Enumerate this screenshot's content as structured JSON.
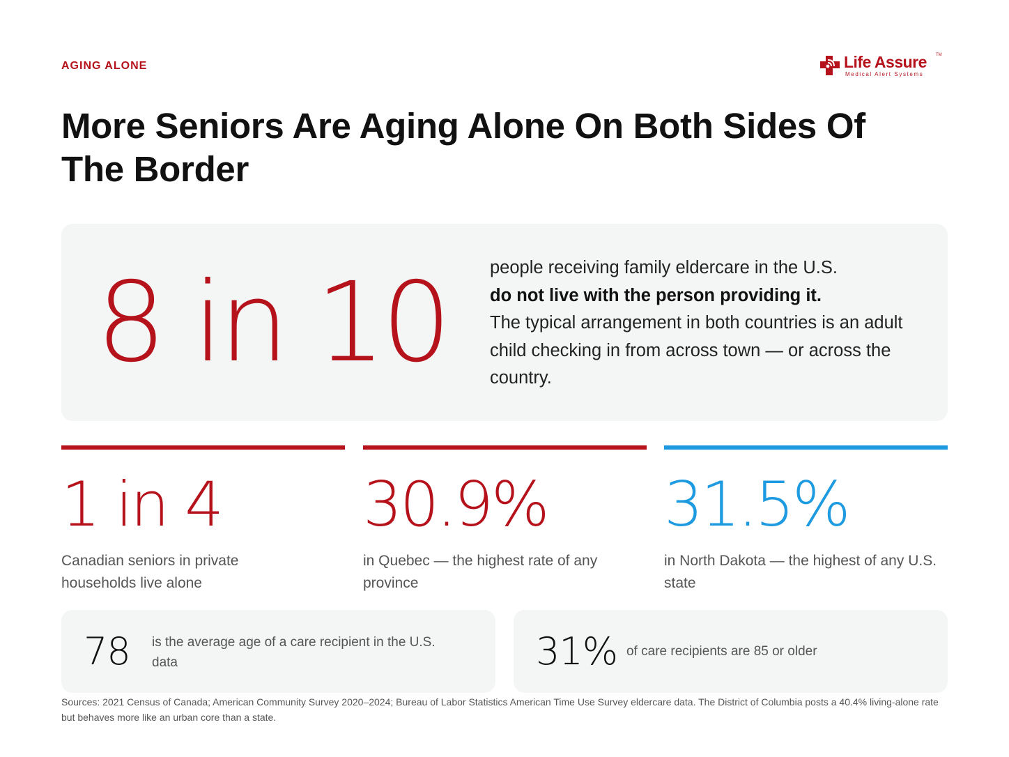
{
  "eyebrow": "AGING ALONE",
  "logo": {
    "name": "Life Assure",
    "tm": "TM",
    "tagline": "Medical Alert Systems",
    "brand_color": "#b5121b"
  },
  "title": "More Seniors Are Aging Alone On Both Sides Of The Border",
  "hero": {
    "stat": "8 in 10",
    "text_lead": "people receiving family eldercare in the U.S.",
    "text_bold": "do not live with the person providing it.",
    "text_rest": "The typical arrangement in both countries is an adult child checking in from across town — or across the country."
  },
  "stats": [
    {
      "value": "1 in 4",
      "desc": "Canadian seniors in private households live alone",
      "color": "#b5121b"
    },
    {
      "value": "30.9%",
      "desc": "in Quebec — the highest rate of any province",
      "color": "#b5121b"
    },
    {
      "value": "31.5%",
      "desc": "in North Dakota — the highest of any U.S. state",
      "color": "#1e9be0"
    }
  ],
  "cards": [
    {
      "value": "78",
      "desc": "is the average age of a care recipient in the U.S. data"
    },
    {
      "value": "31%",
      "desc": "of care recipients are 85 or older"
    }
  ],
  "sources": "Sources: 2021 Census of Canada; American Community Survey 2020–2024; Bureau of Labor Statistics American Time Use Survey eldercare data. The District of Columbia posts a 40.4% living-alone rate but behaves more like an urban core than a state."
}
